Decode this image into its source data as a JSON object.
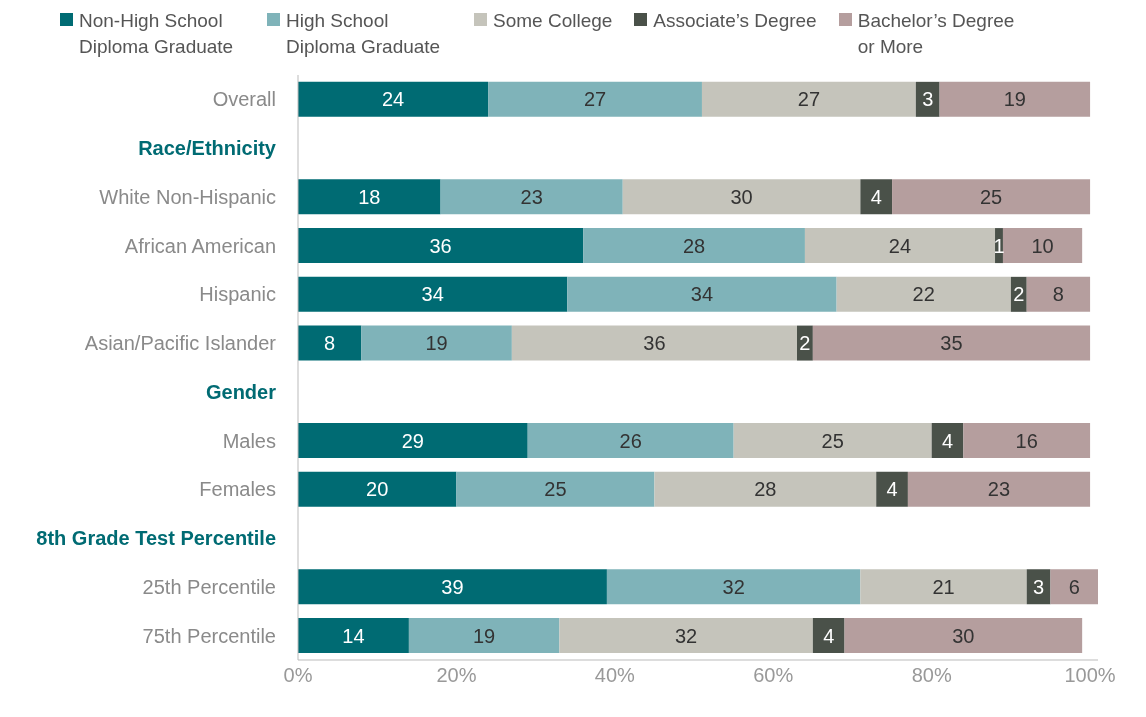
{
  "chart_data": {
    "type": "bar",
    "orientation": "horizontal",
    "stacked": true,
    "data_labels": true,
    "legend": "top",
    "categories": [
      "Overall",
      "Race/Ethnicity",
      "White Non-Hispanic",
      "African American",
      "Hispanic",
      "Asian/Pacific Islander",
      "Gender",
      "Males",
      "Females",
      "8th Grade Test Percentile",
      "25th Percentile",
      "75th Percentile"
    ],
    "series": [
      {
        "name": "Non-High School Diploma Graduate",
        "color": "#006b73",
        "values": [
          24,
          null,
          18,
          36,
          34,
          8,
          null,
          29,
          20,
          null,
          39,
          14
        ]
      },
      {
        "name": "High School Diploma Graduate",
        "color": "#7fb3b9",
        "values": [
          27,
          null,
          23,
          28,
          34,
          19,
          null,
          26,
          25,
          null,
          32,
          19
        ]
      },
      {
        "name": "Some College",
        "color": "#c5c4bb",
        "values": [
          27,
          null,
          30,
          24,
          22,
          36,
          null,
          25,
          28,
          null,
          21,
          32
        ]
      },
      {
        "name": "Associate’s Degree",
        "color": "#4a5149",
        "values": [
          3,
          null,
          4,
          1,
          2,
          2,
          null,
          4,
          4,
          null,
          3,
          4
        ]
      },
      {
        "name": "Bachelor’s Degree or More",
        "color": "#b59e9e",
        "values": [
          19,
          null,
          25,
          10,
          8,
          35,
          null,
          16,
          23,
          null,
          6,
          30
        ]
      }
    ],
    "xlim": [
      0,
      101
    ],
    "xticks": [
      {
        "value": 0,
        "label": "0%"
      },
      {
        "value": 20,
        "label": "20%"
      },
      {
        "value": 40,
        "label": "40%"
      },
      {
        "value": 60,
        "label": "60%"
      },
      {
        "value": 80,
        "label": "80%"
      },
      {
        "value": 100,
        "label": "100%"
      }
    ]
  }
}
